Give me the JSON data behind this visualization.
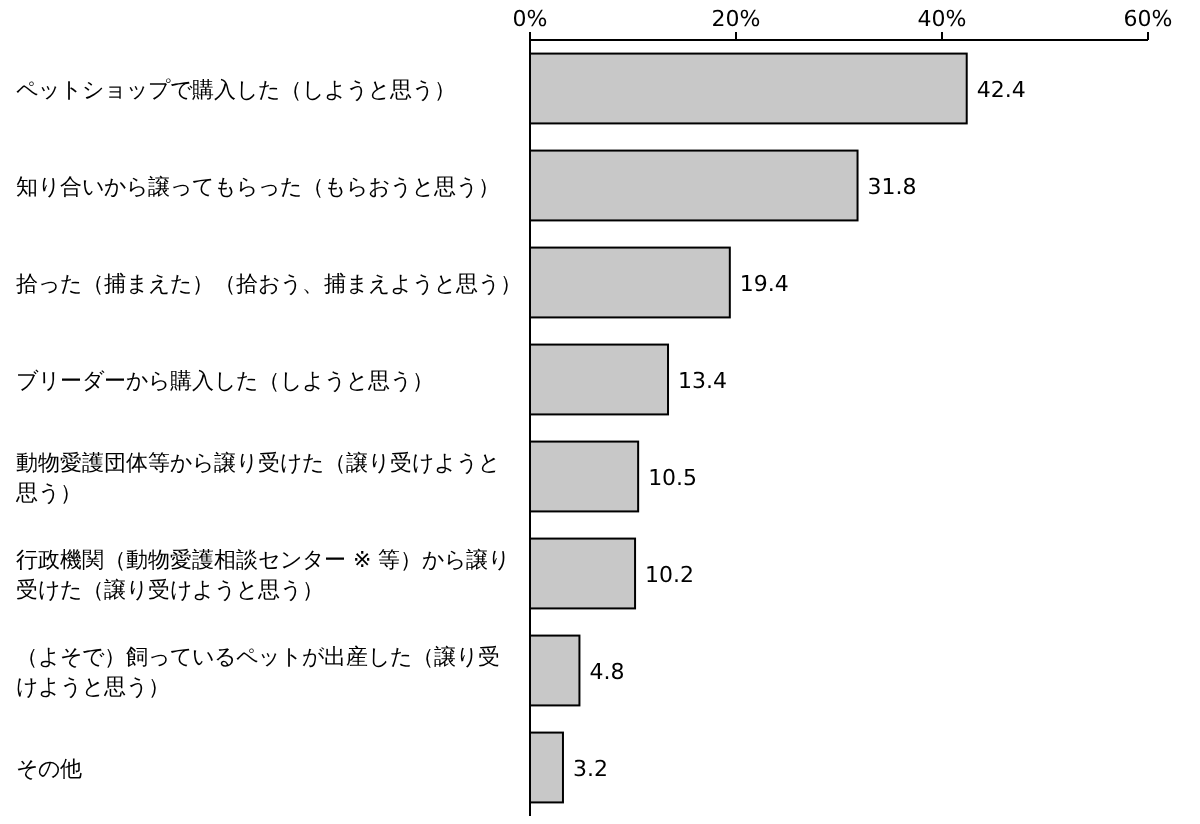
{
  "chart_data": {
    "type": "bar",
    "orientation": "horizontal",
    "categories": [
      "ペットショップで購入した（しようと思う）",
      "知り合いから譲ってもらった（もらおうと思う）",
      "拾った（捕まえた）（拾おう、捕まえようと思う）",
      "ブリーダーから購入した（しようと思う）",
      "動物愛護団体等から譲り受けた（譲り受けようと思う）",
      "行政機関（動物愛護相談センター ※ 等）から譲り受けた（譲り受けようと思う）",
      "（よそで）飼っているペットが出産した（譲り受けようと思う）",
      "その他"
    ],
    "values": [
      42.4,
      31.8,
      19.4,
      13.4,
      10.5,
      10.2,
      4.8,
      3.2
    ],
    "color": "#c8c8c8",
    "xlim": [
      0,
      60
    ],
    "xticks": [
      {
        "value": 0,
        "label": "0%"
      },
      {
        "value": 20,
        "label": "20%"
      },
      {
        "value": 40,
        "label": "40%"
      },
      {
        "value": 60,
        "label": "60%"
      }
    ],
    "data_labels": true,
    "grid": false
  }
}
